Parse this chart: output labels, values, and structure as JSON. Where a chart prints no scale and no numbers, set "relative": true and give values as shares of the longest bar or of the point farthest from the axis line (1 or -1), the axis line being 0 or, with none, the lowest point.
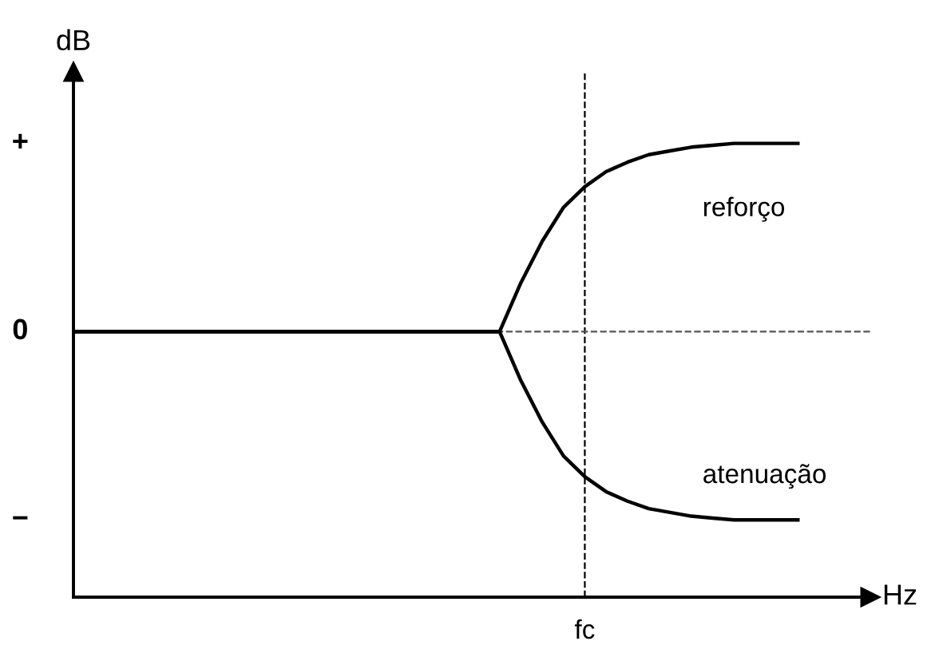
{
  "chart_data": {
    "type": "line",
    "ylabel": "dB",
    "xlabel": "Hz",
    "relative": true,
    "categories": [
      null,
      null,
      null,
      null,
      null,
      null,
      null,
      null,
      null,
      null,
      null,
      null,
      null,
      null,
      null,
      null,
      null,
      null,
      null,
      null,
      null,
      null,
      null,
      null,
      null,
      null,
      null,
      null,
      null,
      null,
      null,
      null,
      null,
      null,
      null
    ],
    "series": [
      {
        "name": "reforço",
        "color": "#000000",
        "values": [
          0,
          0,
          0,
          0,
          0,
          0,
          0,
          0,
          0,
          0,
          0,
          0,
          0,
          0,
          0,
          0,
          0,
          0,
          0,
          0,
          0,
          0.26,
          0.48,
          0.66,
          0.77,
          0.85,
          0.9,
          0.94,
          0.96,
          0.98,
          0.99,
          1.0,
          1.0,
          1.0,
          1.0
        ]
      },
      {
        "name": "atenuação",
        "color": "#000000",
        "values": [
          0,
          0,
          0,
          0,
          0,
          0,
          0,
          0,
          0,
          0,
          0,
          0,
          0,
          0,
          0,
          0,
          0,
          0,
          0,
          0,
          0,
          -0.26,
          -0.48,
          -0.66,
          -0.77,
          -0.85,
          -0.9,
          -0.94,
          -0.96,
          -0.98,
          -0.99,
          -1.0,
          -1.0,
          -1.0,
          -1.0
        ]
      }
    ],
    "annotations": [
      "fc",
      "+",
      "0",
      "−"
    ],
    "ref_lines": [
      {
        "axis": "y",
        "value": 0,
        "line_style": "dashed",
        "color": "#555555"
      }
    ],
    "marker": "none",
    "line_style": "solid"
  }
}
